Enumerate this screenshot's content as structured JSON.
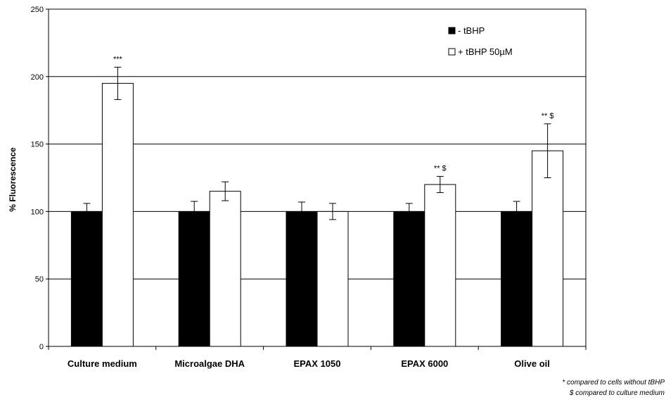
{
  "chart_data": {
    "type": "bar",
    "ylabel": "% Fluorescence",
    "xlabel": "",
    "ylim": [
      0,
      250
    ],
    "yticks": [
      0,
      50,
      100,
      150,
      200,
      250
    ],
    "grid": true,
    "legend_position": "top-right",
    "categories": [
      "Culture medium",
      "Microalgae DHA",
      "EPAX 1050",
      "EPAX 6000",
      "Olive oil"
    ],
    "series": [
      {
        "name": "- tBHP",
        "color": "#000000",
        "values": [
          100,
          100,
          100,
          100,
          100
        ],
        "errors": [
          6,
          7.5,
          7,
          6,
          7.5
        ]
      },
      {
        "name": "+ tBHP 50µM",
        "color": "#ffffff",
        "values": [
          195,
          115,
          100,
          120,
          145
        ],
        "errors": [
          12,
          7,
          6,
          6,
          20
        ]
      }
    ],
    "annotations": [
      "***",
      "",
      "",
      "** $",
      "** $"
    ],
    "footnotes": [
      "* compared to cells without tBHP",
      "$ compared to culture medium"
    ]
  }
}
